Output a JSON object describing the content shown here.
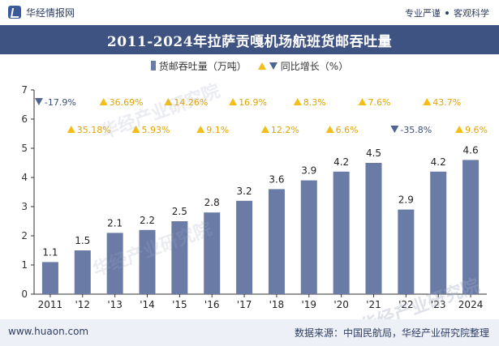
{
  "header": {
    "brand": "华经情报网",
    "tagline_left": "专业严谨",
    "tagline_right": "客观科学"
  },
  "title": "2011-2024年拉萨贡嘎机场航班货邮吞吐量",
  "legend": {
    "bar_label": "货邮吞吐量（万吨）",
    "line_label": "同比增长（%）"
  },
  "footer": {
    "website": "www.huaon.com",
    "source": "数据来源：中国民航局，华经产业研究院整理"
  },
  "watermark": "华经产业研究院",
  "colors": {
    "bar": "#6a7ba6",
    "up": "#f5bd17",
    "down": "#4e6491",
    "title_bg": "#3e5382"
  },
  "chart_data": {
    "type": "bar",
    "categories": [
      "2011",
      "'12",
      "'13",
      "'14",
      "'15",
      "'16",
      "'17",
      "'18",
      "'19",
      "'20",
      "'21",
      "'22",
      "'23",
      "2024"
    ],
    "values": [
      1.1,
      1.5,
      2.1,
      2.2,
      2.5,
      2.8,
      3.2,
      3.6,
      3.9,
      4.2,
      4.5,
      2.9,
      4.2,
      4.6
    ],
    "value_labels": [
      "1.1",
      "1.5",
      "2.1",
      "2.2",
      "2.5",
      "2.8",
      "3.2",
      "3.6",
      "3.9",
      "4.2",
      "4.5",
      "2.9",
      "4.2",
      "4.6"
    ],
    "growth": [
      -17.9,
      35.18,
      36.69,
      5.93,
      14.26,
      9.1,
      16.9,
      12.2,
      8.3,
      6.6,
      7.6,
      -35.8,
      43.7,
      9.6
    ],
    "growth_labels": [
      "-17.9%",
      "35.18%",
      "36.69%",
      "5.93%",
      "14.26%",
      "9.1%",
      "16.9%",
      "12.2%",
      "8.3%",
      "6.6%",
      "7.6%",
      "-35.8%",
      "43.7%",
      "9.6%"
    ],
    "ylim": [
      0,
      7
    ],
    "yticks": [
      "0",
      "1",
      "2",
      "3",
      "4",
      "5",
      "6",
      "7"
    ],
    "grid": false,
    "legend_position": "top-center"
  }
}
